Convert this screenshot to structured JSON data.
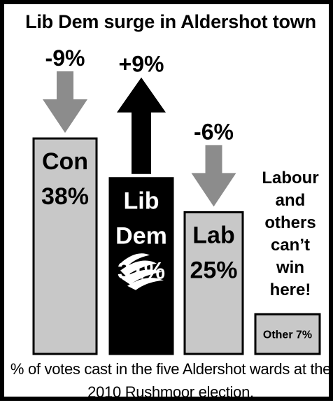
{
  "chart_data": {
    "type": "bar",
    "title": "Lib Dem surge in Aldershot town",
    "xlabel": "",
    "ylabel": "",
    "ylim": [
      0,
      38
    ],
    "series": [
      {
        "categories": [
          "Con",
          "Lib Dem",
          "Lab",
          "Other"
        ],
        "values": [
          38,
          31,
          25,
          7
        ],
        "bar_labels": [
          [
            "Con",
            "38%"
          ],
          [
            "Lib",
            "Dem",
            "31%"
          ],
          [
            "Lab",
            "25%"
          ],
          [
            "Other 7%"
          ]
        ],
        "changes": [
          "-9%",
          "+9%",
          "-6%",
          null
        ],
        "change_direction": [
          "down",
          "up",
          "down",
          null
        ],
        "colors": [
          "#c8c8c8",
          "#000000",
          "#c8c8c8",
          "#c8c8c8"
        ]
      }
    ],
    "annotations": [
      "Labour",
      "and",
      "others",
      "can’t",
      "win",
      "here!"
    ],
    "footnote": "% of votes cast in the five Aldershot wards at the 2010 Rushmoor election.",
    "arrow_colors": {
      "down": "#8c8c8c",
      "up": "#000000"
    }
  }
}
